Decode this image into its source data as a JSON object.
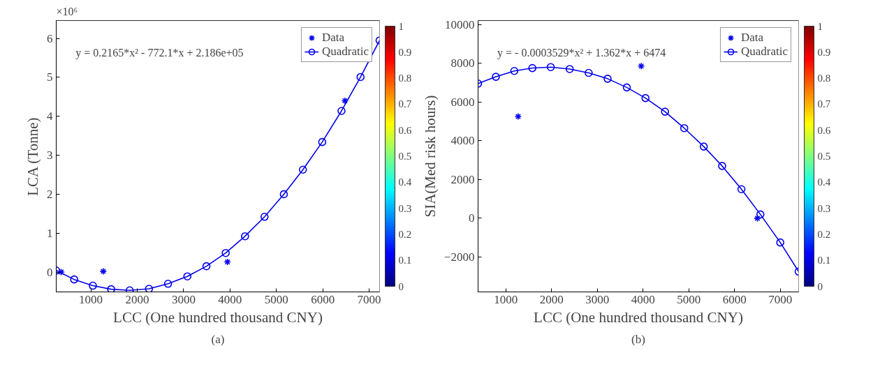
{
  "chart_data": [
    {
      "type": "line",
      "title": "(a)",
      "xlabel": "LCC (One hundred thousand CNY)",
      "ylabel": "LCA (Tonne)",
      "annotations": [
        "×10⁶",
        "y = 0.2165*x² - 772.1*x + 2.186e+05"
      ],
      "xlim": [
        253,
        7224
      ],
      "ylim": [
        -0.51,
        6.46
      ],
      "xticks": [
        1000,
        2000,
        3000,
        4000,
        5000,
        6000,
        7000
      ],
      "yticks": [
        0,
        1,
        2,
        3,
        4,
        5,
        6
      ],
      "grid": false,
      "legend": "top right",
      "clim": [
        0,
        1
      ],
      "cticks": [
        0,
        0.1,
        0.2,
        0.3,
        0.4,
        0.5,
        0.6,
        0.7,
        0.8,
        0.9,
        1
      ],
      "series": [
        {
          "name": "Data",
          "type": "scatter",
          "marker": "cross",
          "color": "#0000ee",
          "x": [
            360,
            1267,
            3944,
            6477
          ],
          "values": [
            0.0,
            0.02,
            0.26,
            4.4
          ]
        },
        {
          "name": "Quadratic",
          "marker": "circle",
          "color": "#0000ee",
          "x": [
            253,
            640,
            1043,
            1437,
            1837,
            2253,
            2664,
            3080,
            3491,
            3907,
            4323,
            4744,
            5160,
            5571,
            5987,
            6403,
            6813,
            7224
          ],
          "values": [
            0.04,
            -0.19,
            -0.35,
            -0.44,
            -0.47,
            -0.43,
            -0.3,
            -0.11,
            0.15,
            0.49,
            0.92,
            1.42,
            2.0,
            2.63,
            3.34,
            4.14,
            5.01,
            5.95
          ]
        }
      ]
    },
    {
      "type": "line",
      "title": "(b)",
      "xlabel": "LCC (One hundred thousand CNY)",
      "ylabel": "SIA(Med risk hours)",
      "annotations": [
        "y = - 0.0003529*x² + 1.362*x + 6474"
      ],
      "xlim": [
        394,
        7402
      ],
      "ylim": [
        -3800,
        10200
      ],
      "xticks": [
        1000,
        2000,
        3000,
        4000,
        5000,
        6000,
        7000
      ],
      "yticks": [
        -2000,
        0,
        2000,
        4000,
        6000,
        8000,
        10000
      ],
      "grid": false,
      "legend": "top right",
      "clim": [
        0,
        1
      ],
      "cticks": [
        0,
        0.1,
        0.2,
        0.3,
        0.4,
        0.5,
        0.6,
        0.7,
        0.8,
        0.9,
        1
      ],
      "series": [
        {
          "name": "Data",
          "type": "scatter",
          "marker": "cross",
          "color": "#0000ee",
          "x": [
            1270,
            3960,
            6500
          ],
          "values": [
            5250,
            7850,
            0
          ]
        },
        {
          "name": "Quadratic",
          "marker": "circle",
          "color": "#0000ee",
          "x": [
            394,
            784,
            1186,
            1581,
            1983,
            2397,
            2812,
            3226,
            3646,
            4054,
            4481,
            4901,
            5328,
            5730,
            6151,
            6566,
            7000,
            7402
          ],
          "values": [
            6950,
            7300,
            7600,
            7750,
            7800,
            7700,
            7500,
            7200,
            6750,
            6200,
            5500,
            4650,
            3700,
            2700,
            1500,
            200,
            -1250,
            -2750
          ]
        }
      ]
    }
  ]
}
